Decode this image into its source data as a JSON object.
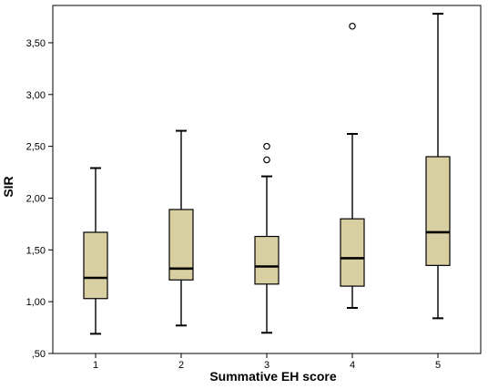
{
  "chart_data": {
    "type": "boxplot",
    "xlabel": "Summative EH score",
    "ylabel": "SIR",
    "ylim": [
      0.5,
      3.86
    ],
    "yticks": [
      ",50",
      "1,00",
      "1,50",
      "2,00",
      "2,50",
      "3,00",
      "3,50"
    ],
    "grid": false,
    "categories": [
      "1",
      "2",
      "3",
      "4",
      "5"
    ],
    "boxes": [
      {
        "category": "1",
        "whisker_low": 0.69,
        "q1": 1.03,
        "median": 1.23,
        "q3": 1.67,
        "whisker_high": 2.29,
        "outliers": []
      },
      {
        "category": "2",
        "whisker_low": 0.77,
        "q1": 1.21,
        "median": 1.32,
        "q3": 1.89,
        "whisker_high": 2.65,
        "outliers": []
      },
      {
        "category": "3",
        "whisker_low": 0.7,
        "q1": 1.17,
        "median": 1.34,
        "q3": 1.63,
        "whisker_high": 2.21,
        "outliers": [
          2.37,
          2.5
        ]
      },
      {
        "category": "4",
        "whisker_low": 0.94,
        "q1": 1.15,
        "median": 1.42,
        "q3": 1.8,
        "whisker_high": 2.62,
        "outliers": [
          3.66
        ]
      },
      {
        "category": "5",
        "whisker_low": 0.84,
        "q1": 1.35,
        "median": 1.67,
        "q3": 2.4,
        "whisker_high": 3.78,
        "outliers": []
      }
    ],
    "colors": {
      "box_fill": "#d8d0a2",
      "stroke": "#000000",
      "plot_background": "#ffffff",
      "frame": "#000000"
    }
  }
}
